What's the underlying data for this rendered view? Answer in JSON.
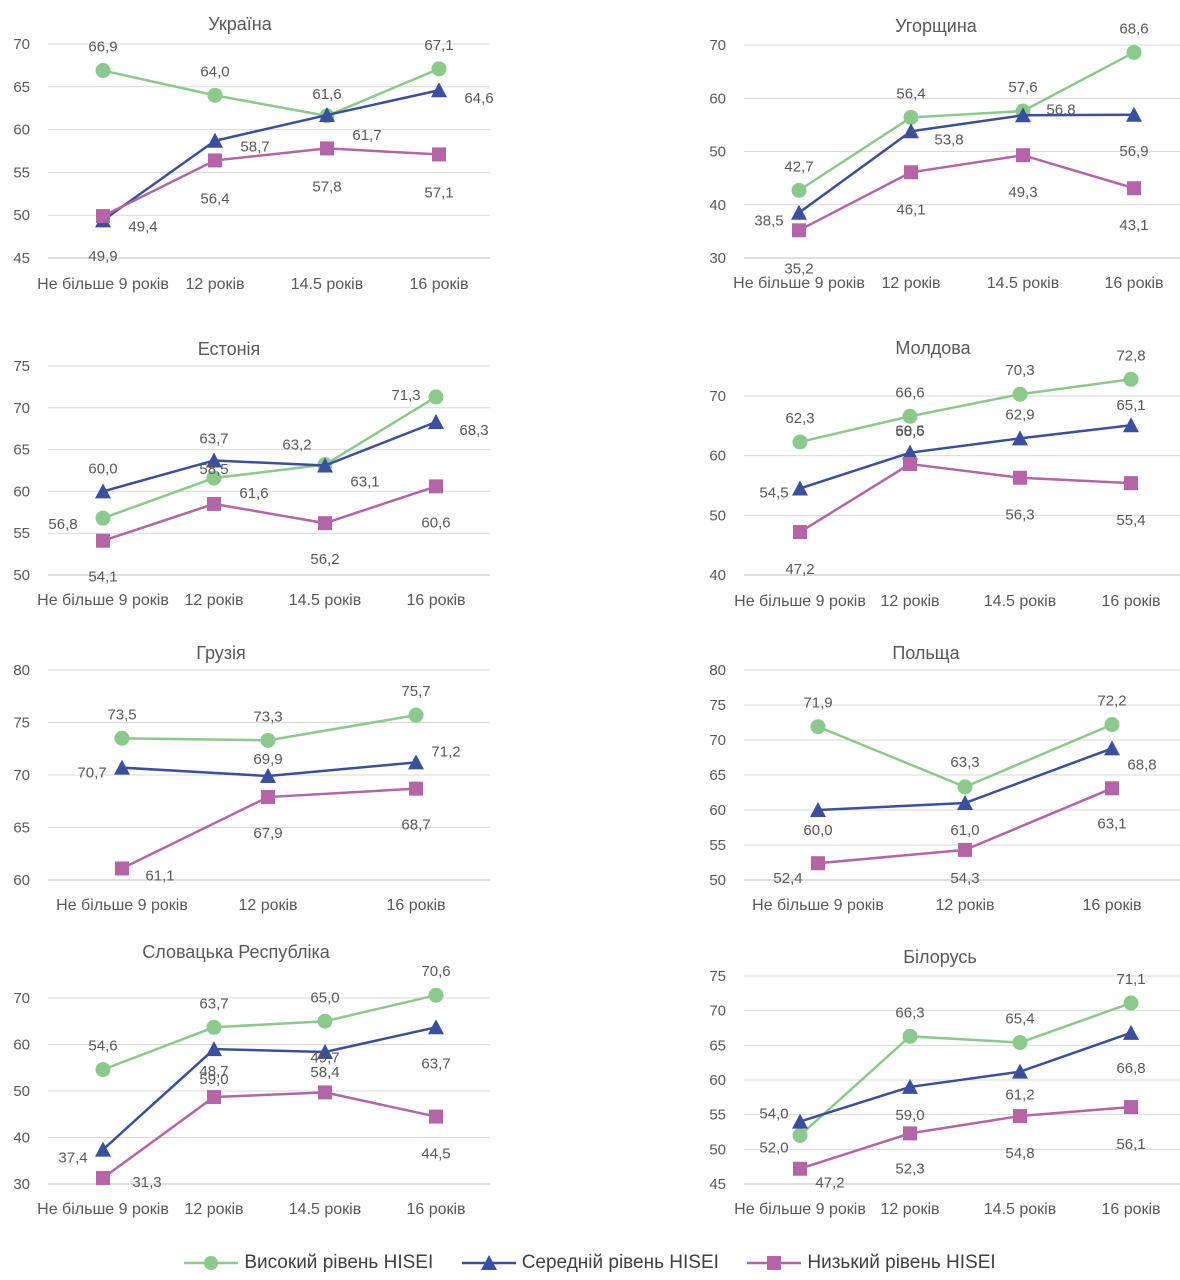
{
  "colors": {
    "high": "#8cc98c",
    "mid": "#3a4f9f",
    "low": "#b565a7",
    "axis": "#595959",
    "grid": "#d9d9d9"
  },
  "legend": [
    {
      "key": "high",
      "marker": "circle",
      "label": "Високий рівень HISEI"
    },
    {
      "key": "mid",
      "marker": "triangle",
      "label": "Середній рівень HISEI"
    },
    {
      "key": "low",
      "marker": "square",
      "label": "Низький рівень HISEI"
    }
  ],
  "chart_data": [
    {
      "type": "line",
      "title": "Україна",
      "categories": [
        "Не більше 9 років",
        "12 років",
        "14.5 років",
        "16 років"
      ],
      "yticks": [
        45,
        50,
        55,
        60,
        65,
        70
      ],
      "ylim": [
        45,
        70
      ],
      "series": [
        {
          "key": "high",
          "name": "Високий рівень HISEI",
          "values": [
            66.9,
            64.0,
            61.6,
            67.1
          ],
          "labels": [
            "66,9",
            "64,0",
            "61,6",
            "67,1"
          ]
        },
        {
          "key": "mid",
          "name": "Середній рівень HISEI",
          "values": [
            49.4,
            58.7,
            61.7,
            64.6
          ],
          "labels": [
            "49,4",
            "58,7",
            "61,7",
            "64,6"
          ]
        },
        {
          "key": "low",
          "name": "Низький рівень HISEI",
          "values": [
            49.9,
            56.4,
            57.8,
            57.1
          ],
          "labels": [
            "49,9",
            "56,4",
            "57,8",
            "57,1"
          ]
        }
      ]
    },
    {
      "type": "line",
      "title": "Угорщина",
      "categories": [
        "Не більше 9 років",
        "12 років",
        "14.5 років",
        "16 років"
      ],
      "yticks": [
        30,
        40,
        50,
        60,
        70
      ],
      "ylim": [
        30,
        70
      ],
      "series": [
        {
          "key": "high",
          "name": "Високий рівень HISEI",
          "values": [
            42.7,
            56.4,
            57.6,
            68.6
          ],
          "labels": [
            "42,7",
            "56,4",
            "57,6",
            "68,6"
          ]
        },
        {
          "key": "mid",
          "name": "Середній рівень HISEI",
          "values": [
            38.5,
            53.8,
            56.8,
            56.9
          ],
          "labels": [
            "38,5",
            "53,8",
            "56,8",
            "56,9"
          ]
        },
        {
          "key": "low",
          "name": "Низький рівень HISEI",
          "values": [
            35.2,
            46.1,
            49.3,
            43.1
          ],
          "labels": [
            "35,2",
            "46,1",
            "49,3",
            "43,1"
          ]
        }
      ]
    },
    {
      "type": "line",
      "title": "Естонія",
      "categories": [
        "Не більше 9 років",
        "12 років",
        "14.5 років",
        "16 років"
      ],
      "yticks": [
        50,
        55,
        60,
        65,
        70,
        75
      ],
      "ylim": [
        50,
        75
      ],
      "series": [
        {
          "key": "high",
          "name": "Високий рівень HISEI",
          "values": [
            56.8,
            61.6,
            63.2,
            71.3
          ],
          "labels": [
            "56,8",
            "61,6",
            "63,2",
            "71,3"
          ]
        },
        {
          "key": "mid",
          "name": "Середній рівень HISEI",
          "values": [
            60.0,
            63.7,
            63.1,
            68.3
          ],
          "labels": [
            "60,0",
            "63,7",
            "63,1",
            "68,3"
          ]
        },
        {
          "key": "low",
          "name": "Низький рівень HISEI",
          "values": [
            54.1,
            58.5,
            56.2,
            60.6
          ],
          "labels": [
            "54,1",
            "58,5",
            "56,2",
            "60,6"
          ]
        }
      ]
    },
    {
      "type": "line",
      "title": "Молдова",
      "categories": [
        "Не більше 9 років",
        "12 років",
        "14.5 років",
        "16 років"
      ],
      "yticks": [
        40,
        50,
        60,
        70
      ],
      "ylim": [
        40,
        75
      ],
      "series": [
        {
          "key": "high",
          "name": "Високий рівень HISEI",
          "values": [
            62.3,
            66.6,
            70.3,
            72.8
          ],
          "labels": [
            "62,3",
            "66,6",
            "70,3",
            "72,8"
          ]
        },
        {
          "key": "mid",
          "name": "Середній рівень HISEI",
          "values": [
            54.5,
            60.5,
            62.9,
            65.1
          ],
          "labels": [
            "54,5",
            "60,5",
            "62,9",
            "65,1"
          ]
        },
        {
          "key": "low",
          "name": "Низький рівень HISEI",
          "values": [
            47.2,
            58.6,
            56.3,
            55.4
          ],
          "labels": [
            "47,2",
            "58,6",
            "56,3",
            "55,4"
          ]
        }
      ]
    },
    {
      "type": "line",
      "title": "Грузія",
      "categories": [
        "Не більше 9 років",
        "12 років",
        "16 років"
      ],
      "yticks": [
        60,
        65,
        70,
        75,
        80
      ],
      "ylim": [
        60,
        80
      ],
      "series": [
        {
          "key": "high",
          "name": "Високий рівень HISEI",
          "values": [
            73.5,
            73.3,
            75.7
          ],
          "labels": [
            "73,5",
            "73,3",
            "75,7"
          ]
        },
        {
          "key": "mid",
          "name": "Середній рівень HISEI",
          "values": [
            70.7,
            69.9,
            71.2
          ],
          "labels": [
            "70,7",
            "69,9",
            "71,2"
          ]
        },
        {
          "key": "low",
          "name": "Низький рівень HISEI",
          "values": [
            61.1,
            67.9,
            68.7
          ],
          "labels": [
            "61,1",
            "67,9",
            "68,7"
          ]
        }
      ]
    },
    {
      "type": "line",
      "title": "Польща",
      "categories": [
        "Не більше 9 років",
        "12 років",
        "16 років"
      ],
      "yticks": [
        50,
        55,
        60,
        65,
        70,
        75,
        80
      ],
      "ylim": [
        50,
        80
      ],
      "series": [
        {
          "key": "high",
          "name": "Високий рівень HISEI",
          "values": [
            71.9,
            63.3,
            72.2
          ],
          "labels": [
            "71,9",
            "63,3",
            "72,2"
          ]
        },
        {
          "key": "mid",
          "name": "Середній рівень HISEI",
          "values": [
            60.0,
            61.0,
            68.8
          ],
          "labels": [
            "60,0",
            "61,0",
            "68,8"
          ]
        },
        {
          "key": "low",
          "name": "Низький рівень HISEI",
          "values": [
            52.4,
            54.3,
            63.1
          ],
          "labels": [
            "52,4",
            "54,3",
            "63,1"
          ]
        }
      ]
    },
    {
      "type": "line",
      "title": "Словацька Республіка",
      "categories": [
        "Не більше 9 років",
        "12 років",
        "14.5 років",
        "16 років"
      ],
      "yticks": [
        30,
        40,
        50,
        60,
        70
      ],
      "ylim": [
        30,
        75
      ],
      "series": [
        {
          "key": "high",
          "name": "Високий рівень HISEI",
          "values": [
            54.6,
            63.7,
            65.0,
            70.6
          ],
          "labels": [
            "54,6",
            "63,7",
            "65,0",
            "70,6"
          ]
        },
        {
          "key": "mid",
          "name": "Середній рівень HISEI",
          "values": [
            37.4,
            59.0,
            58.4,
            63.7
          ],
          "labels": [
            "37,4",
            "59,0",
            "58,4",
            "63,7"
          ]
        },
        {
          "key": "low",
          "name": "Низький рівень HISEI",
          "values": [
            31.3,
            48.7,
            49.7,
            44.5
          ],
          "labels": [
            "31,3",
            "48,7",
            "49,7",
            "44,5"
          ]
        }
      ]
    },
    {
      "type": "line",
      "title": "Білорусь",
      "categories": [
        "Не більше 9 років",
        "12 років",
        "14.5 років",
        "16 років"
      ],
      "yticks": [
        45,
        50,
        55,
        60,
        65,
        70,
        75
      ],
      "ylim": [
        45,
        75
      ],
      "series": [
        {
          "key": "high",
          "name": "Високий рівень HISEI",
          "values": [
            52.0,
            66.3,
            65.4,
            71.1
          ],
          "labels": [
            "52,0",
            "66,3",
            "65,4",
            "71,1"
          ]
        },
        {
          "key": "mid",
          "name": "Середній рівень HISEI",
          "values": [
            54.0,
            59.0,
            61.2,
            66.8
          ],
          "labels": [
            "54,0",
            "59,0",
            "61,2",
            "66,8"
          ]
        },
        {
          "key": "low",
          "name": "Низький рівень HISEI",
          "values": [
            47.2,
            52.3,
            54.8,
            56.1
          ],
          "labels": [
            "47,2",
            "52,3",
            "54,8",
            "56,1"
          ]
        }
      ]
    }
  ]
}
